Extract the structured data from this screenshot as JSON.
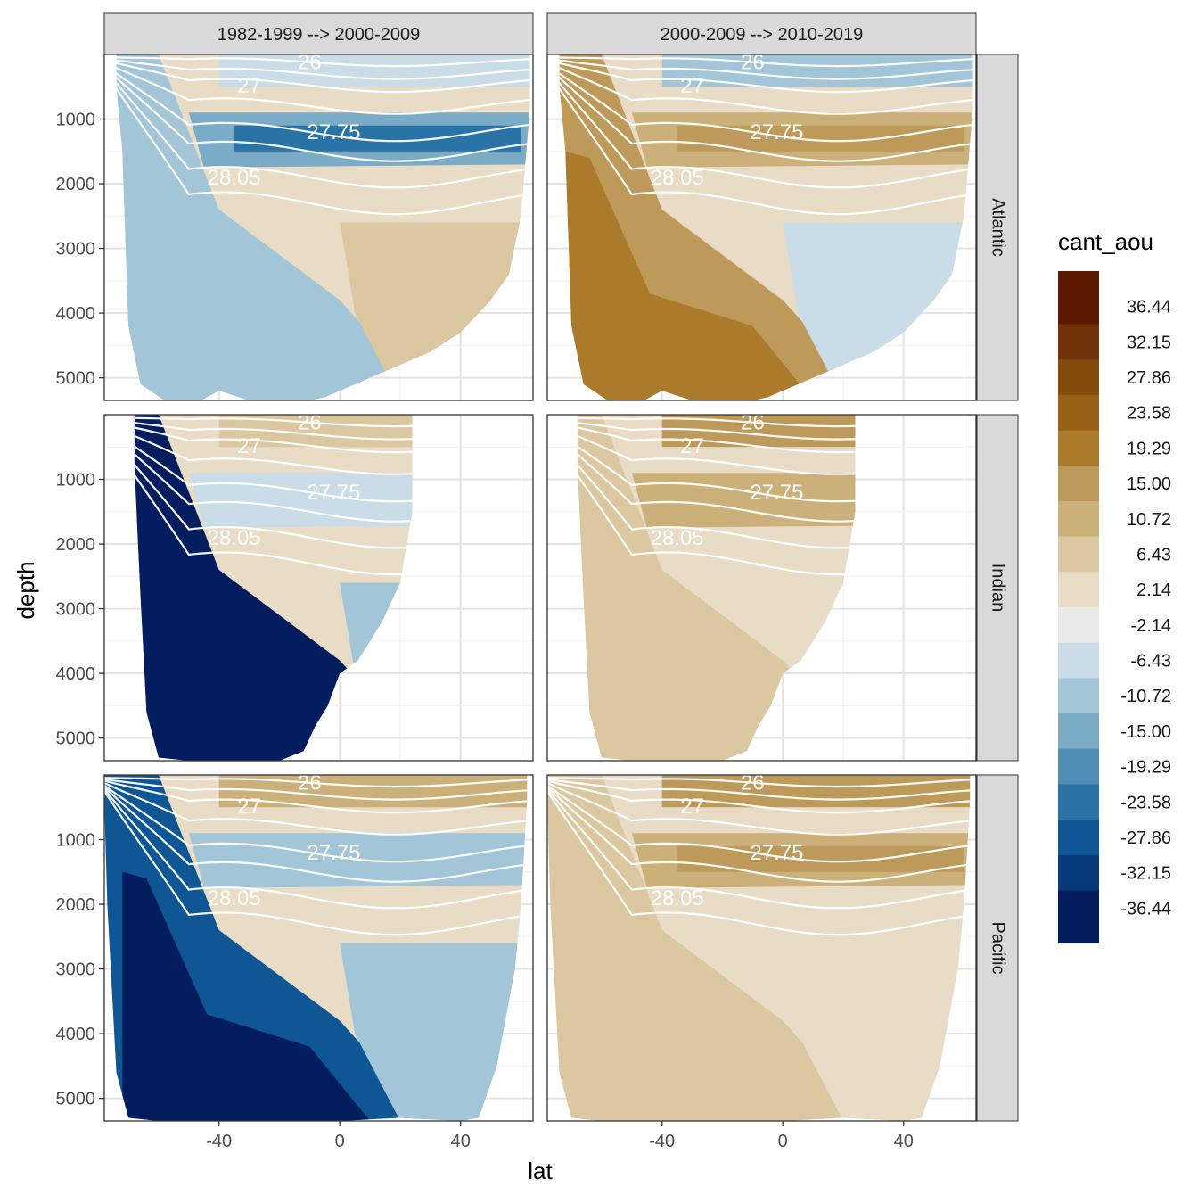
{
  "chart_data": {
    "type": "heatmap",
    "subtype": "faceted filled-contour sections with isopycnal contour lines",
    "xlabel": "lat",
    "ylabel": "depth",
    "y_reversed": true,
    "x_ticks": [
      -40,
      0,
      40
    ],
    "y_ticks": [
      1000,
      2000,
      3000,
      4000,
      5000
    ],
    "xlim": [
      -78,
      64
    ],
    "ylim": [
      0,
      5350
    ],
    "grid": true,
    "columns": [
      "1982-1999 --> 2000-2009",
      "2000-2009 --> 2010-2019"
    ],
    "rows": [
      "Atlantic",
      "Indian",
      "Pacific"
    ],
    "legend": {
      "title": "cant_aou",
      "position": "right",
      "labels": [
        "36.44",
        "32.15",
        "27.86",
        "23.58",
        "19.29",
        "15.00",
        "10.72",
        "6.43",
        "2.14",
        "-2.14",
        "-6.43",
        "-10.72",
        "-15.00",
        "-19.29",
        "-23.58",
        "-27.86",
        "-32.15",
        "-36.44"
      ],
      "colors": [
        "#5e1a00",
        "#73330a",
        "#864c0c",
        "#986117",
        "#ab7b2b",
        "#bd9a5a",
        "#cbb07a",
        "#dbc8a0",
        "#e8dcc6",
        "#eaebe8",
        "#c9dce8",
        "#a3c5d8",
        "#7aabc7",
        "#4f8fb6",
        "#2a73a7",
        "#0e5694",
        "#063a7b",
        "#031d5e"
      ]
    },
    "contour_labels": [
      "26",
      "27",
      "27.75",
      "28.05"
    ],
    "panels": [
      {
        "column": "1982-1999 --> 2000-2009",
        "row": "Atlantic",
        "deep_value": -8.6,
        "surface_value": -4.3,
        "intermediate_value": -17.1,
        "deep_north_value": 6.4,
        "dominant": "negative"
      },
      {
        "column": "2000-2009 --> 2010-2019",
        "row": "Atlantic",
        "deep_value": 17.1,
        "surface_value": -8.6,
        "intermediate_value": 10.7,
        "deep_north_value": -4.3,
        "dominant": "positive"
      },
      {
        "column": "1982-1999 --> 2000-2009",
        "row": "Indian",
        "deep_value": -36.4,
        "surface_value": 4.3,
        "intermediate_value": -4.3,
        "deep_north_value": -8.6,
        "dominant": "negative"
      },
      {
        "column": "2000-2009 --> 2010-2019",
        "row": "Indian",
        "deep_value": 4.3,
        "surface_value": 17.1,
        "intermediate_value": 8.6,
        "deep_north_value": 0,
        "dominant": "positive"
      },
      {
        "column": "1982-1999 --> 2000-2009",
        "row": "Pacific",
        "deep_value": -30.0,
        "surface_value": 8.6,
        "intermediate_value": -8.6,
        "deep_north_value": -8.6,
        "dominant": "negative"
      },
      {
        "column": "2000-2009 --> 2010-2019",
        "row": "Pacific",
        "deep_value": 4.3,
        "surface_value": 17.1,
        "intermediate_value": 10.7,
        "deep_north_value": 0,
        "dominant": "positive"
      }
    ]
  }
}
